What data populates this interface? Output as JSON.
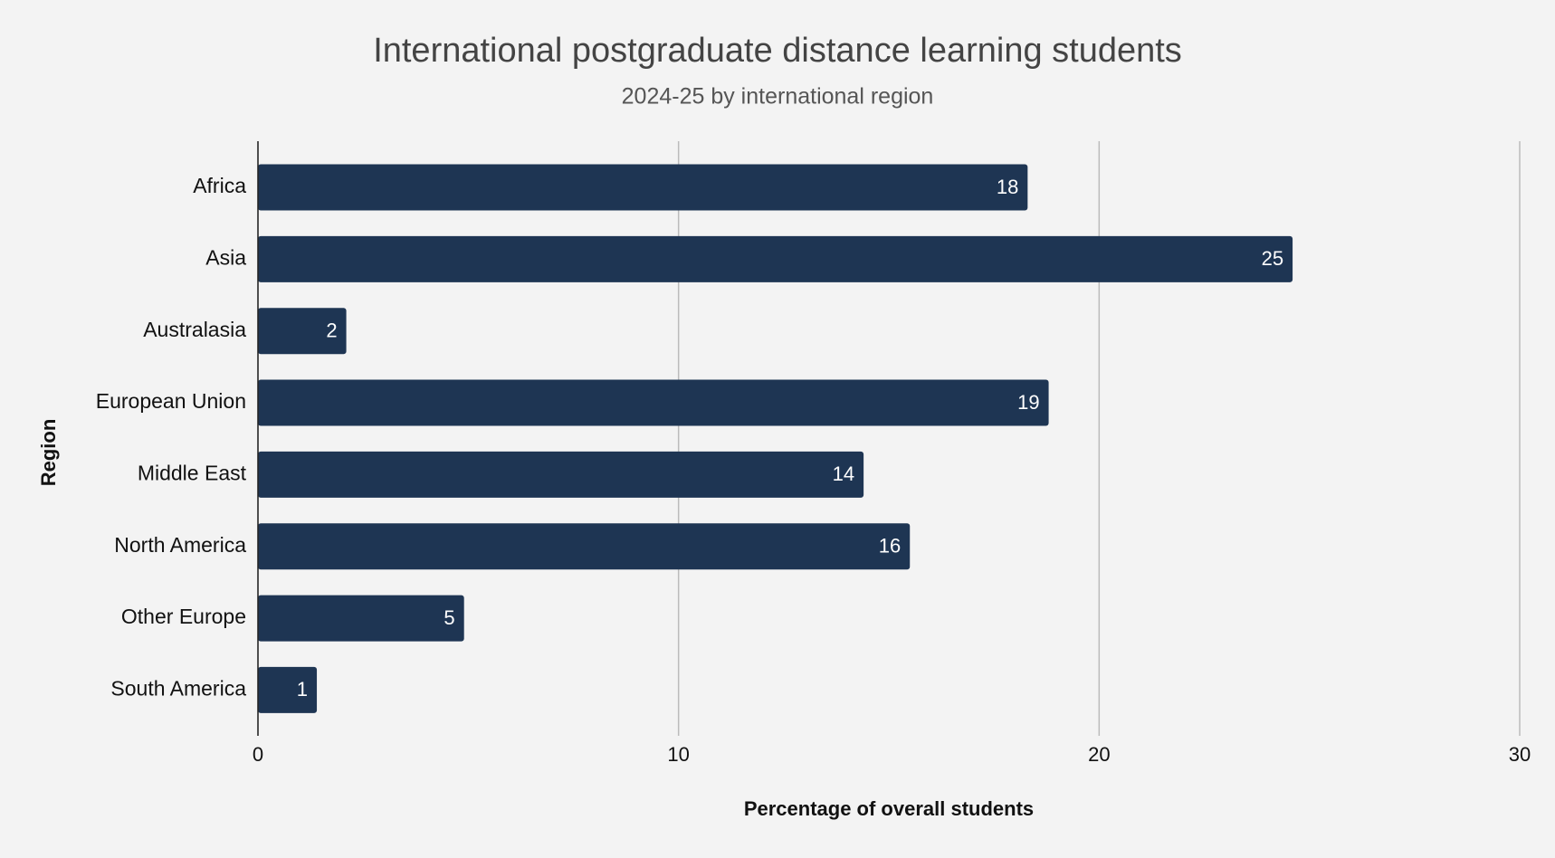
{
  "chart_data": {
    "type": "bar",
    "orientation": "horizontal",
    "title": "International postgraduate distance learning students",
    "subtitle": "2024-25 by international region",
    "x_label": "Percentage of overall students",
    "y_label": "Region",
    "categories": [
      "Africa",
      "Asia",
      "Australasia",
      "European Union",
      "Middle East",
      "North America",
      "Other Europe",
      "South America"
    ],
    "values": [
      18.3,
      24.6,
      2.1,
      18.8,
      14.4,
      15.5,
      4.9,
      1.4
    ],
    "value_labels": [
      "18",
      "25",
      "2",
      "19",
      "14",
      "16",
      "5",
      "1"
    ],
    "color": "#1e3553",
    "xlim": [
      0,
      30
    ],
    "xticks": [
      0,
      10,
      20,
      30
    ],
    "grid": true
  }
}
